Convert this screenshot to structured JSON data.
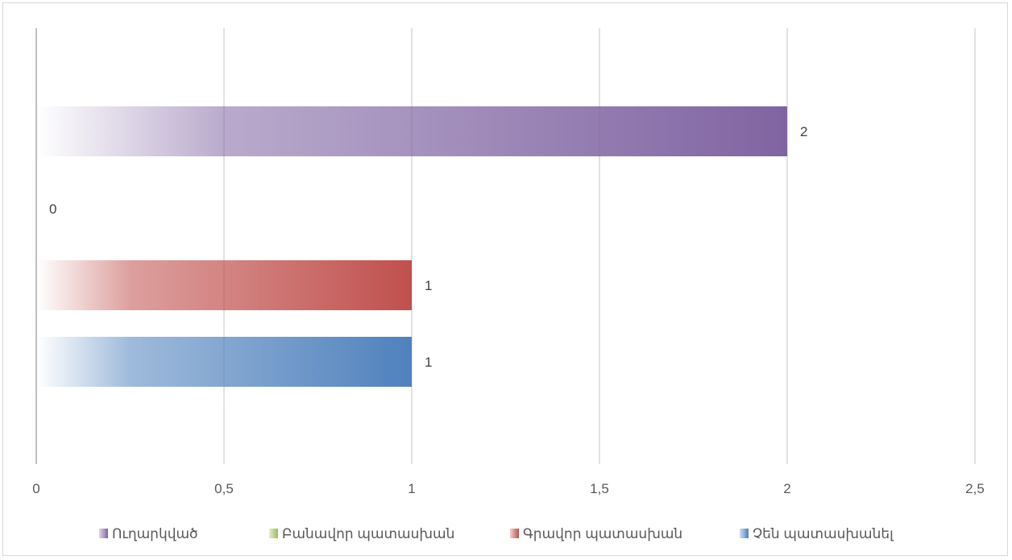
{
  "chart_data": {
    "type": "bar",
    "orientation": "horizontal",
    "xlim": [
      0,
      2.5
    ],
    "x_ticks": [
      0,
      0.5,
      1,
      1.5,
      2,
      2.5
    ],
    "x_tick_labels": [
      "0",
      "0,5",
      "1",
      "1,5",
      "2",
      "2,5"
    ],
    "grid": "vertical",
    "legend_position": "bottom",
    "series": [
      {
        "name": "Ուղարկված",
        "value": 2,
        "label": "2",
        "color": "#8064a2"
      },
      {
        "name": "Բանավոր պատասխան",
        "value": 0,
        "label": "0",
        "color": "#9bbb59"
      },
      {
        "name": "Գրավոր պատասխան",
        "value": 1,
        "label": "1",
        "color": "#c0504d"
      },
      {
        "name": "Չեն պատասխանել",
        "value": 1,
        "label": "1",
        "color": "#4f81bd"
      }
    ]
  }
}
